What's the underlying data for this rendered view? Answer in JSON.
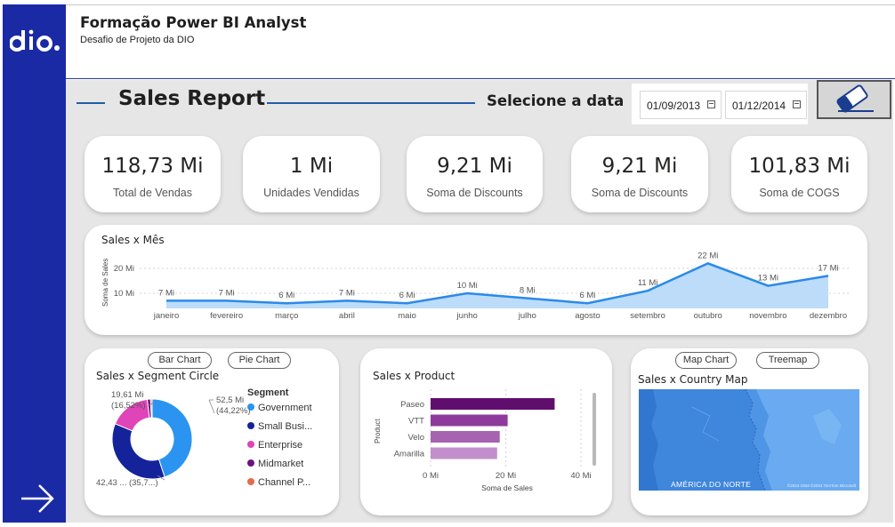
{
  "header": {
    "title": "Formação Power BI Analyst",
    "subtitle": "Desafio de Projeto da DIO",
    "logo_text": "dio."
  },
  "report": {
    "title": "Sales Report",
    "date_label": "Selecione a data",
    "date_start": "01/09/2013",
    "date_end": "01/12/2014"
  },
  "kpis": [
    {
      "value": "118,73 Mi",
      "label": "Total de Vendas"
    },
    {
      "value": "1 Mi",
      "label": "Unidades Vendidas"
    },
    {
      "value": "9,21 Mi",
      "label": "Soma de Discounts"
    },
    {
      "value": "9,21 Mi",
      "label": "Soma de Discounts"
    },
    {
      "value": "101,83 Mi",
      "label": "Soma de COGS"
    }
  ],
  "sales_month": {
    "title": "Sales x Mês",
    "ylabel": "Soma de Sales",
    "yticks": [
      "20 Mi",
      "10 Mi"
    ],
    "months": [
      "janeiro",
      "fevereiro",
      "março",
      "abril",
      "maio",
      "junho",
      "julho",
      "agosto",
      "setembro",
      "outubro",
      "novembro",
      "dezembro"
    ],
    "values": [
      7,
      7,
      6,
      7,
      6,
      10,
      8,
      6,
      11,
      22,
      13,
      17
    ],
    "labels": [
      "7 Mi",
      "7 Mi",
      "6 Mi",
      "7 Mi",
      "6 Mi",
      "10 Mi",
      "8 Mi",
      "6 Mi",
      "11 Mi",
      "22 Mi",
      "13 Mi",
      "17 Mi"
    ]
  },
  "segment": {
    "title": "Sales x Segment Circle",
    "buttons": [
      "Bar Chart",
      "Pie Chart"
    ],
    "legend_title": "Segment",
    "items": [
      {
        "name": "Government",
        "color": "#2b94f0",
        "value": 52.5
      },
      {
        "name": "Small Busi...",
        "color": "#14239a",
        "value": 42.43
      },
      {
        "name": "Enterprise",
        "color": "#df44b8",
        "value": 19.61
      },
      {
        "name": "Midmarket",
        "color": "#6b1281",
        "value": 1.6
      },
      {
        "name": "Channel P...",
        "color": "#e46b4a",
        "value": 0.7
      }
    ],
    "label_gov": [
      "52,5 Mi",
      "(44,22%)"
    ],
    "label_ent": [
      "19,61 Mi",
      "(16,52%)"
    ],
    "label_small": "42,43 ... (35,7...)"
  },
  "product": {
    "title": "Sales x Product",
    "ylabel": "Product",
    "xlabel": "Soma de Sales",
    "xticks": [
      "0 Mi",
      "20 Mi",
      "40 Mi"
    ],
    "xlim": [
      0,
      40
    ],
    "bars": [
      {
        "name": "Paseo",
        "value": 33,
        "color": "#5f0e6e"
      },
      {
        "name": "VTT",
        "value": 20.5,
        "color": "#8e3a9d"
      },
      {
        "name": "Velo",
        "value": 18.4,
        "color": "#a563b0"
      },
      {
        "name": "Amarilla",
        "value": 17.7,
        "color": "#c28ecb"
      }
    ]
  },
  "country": {
    "title": "Sales x Country Map",
    "buttons": [
      "Map Chart",
      "Treemap"
    ],
    "map_label": "AMÉRICA DO NORTE",
    "attribution": "©2024 OSM ©2024 TomTom Microsoft"
  },
  "colors": {
    "sidebar": "#1a2aa5",
    "line_accent": "#2b8ae8",
    "canvas": "#e6e6e6"
  }
}
